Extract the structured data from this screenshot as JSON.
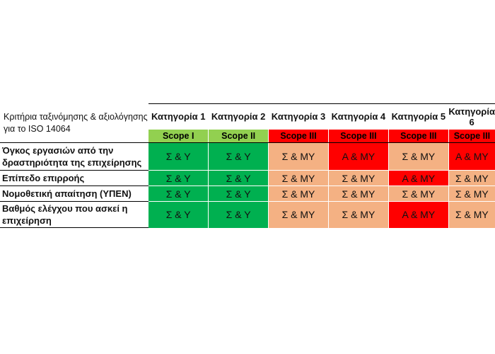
{
  "table": {
    "corner_label": "Κριτήρια ταξινόμησης & αξιολόγησης για το ISO 14064",
    "categories": [
      {
        "label": "Κατηγορία 1",
        "scope": "Scope I",
        "scope_color": "#92D050",
        "scope_text_color": "#000000"
      },
      {
        "label": "Κατηγορία 2",
        "scope": "Scope II",
        "scope_color": "#92D050",
        "scope_text_color": "#000000"
      },
      {
        "label": "Κατηγορία 3",
        "scope": "Scope III",
        "scope_color": "#FF0000",
        "scope_text_color": "#000000"
      },
      {
        "label": "Κατηγορία 4",
        "scope": "Scope III",
        "scope_color": "#FF0000",
        "scope_text_color": "#000000"
      },
      {
        "label": "Κατηγορία 5",
        "scope": "Scope III",
        "scope_color": "#FF0000",
        "scope_text_color": "#000000"
      },
      {
        "label": "Κατηγορία 6",
        "scope": "Scope III",
        "scope_color": "#FF0000",
        "scope_text_color": "#000000"
      }
    ],
    "rows": [
      {
        "label": "Όγκος εργασιών από την δραστηριότητα της επιχείρησης",
        "values": [
          "Σ & Υ",
          "Σ & Υ",
          "Σ & ΜΥ",
          "Α & ΜΥ",
          "Σ & ΜΥ",
          "Α & ΜΥ"
        ],
        "colors": [
          "#00B050",
          "#00B050",
          "#F4B183",
          "#FF0000",
          "#F4B183",
          "#FF0000"
        ]
      },
      {
        "label": "Επίπεδο επιρροής",
        "values": [
          "Σ & Υ",
          "Σ & Υ",
          "Σ & ΜΥ",
          "Σ & ΜΥ",
          "Α & ΜΥ",
          "Σ & ΜΥ"
        ],
        "colors": [
          "#00B050",
          "#00B050",
          "#F4B183",
          "#F4B183",
          "#FF0000",
          "#F4B183"
        ]
      },
      {
        "label": "Νομοθετική απαίτηση (ΥΠΕΝ)",
        "values": [
          "Σ & Υ",
          "Σ & Υ",
          "Σ & ΜΥ",
          "Σ & ΜΥ",
          "Σ & ΜΥ",
          "Σ & ΜΥ"
        ],
        "colors": [
          "#00B050",
          "#00B050",
          "#F4B183",
          "#F4B183",
          "#F4B183",
          "#F4B183"
        ]
      },
      {
        "label": "Βαθμός ελέγχου που ασκεί η επιχείρηση",
        "values": [
          "Σ & Υ",
          "Σ & Υ",
          "Σ & ΜΥ",
          "Σ & ΜΥ",
          "Α & ΜΥ",
          "Σ & ΜΥ"
        ],
        "colors": [
          "#00B050",
          "#00B050",
          "#F4B183",
          "#F4B183",
          "#FF0000",
          "#F4B183"
        ]
      }
    ]
  }
}
